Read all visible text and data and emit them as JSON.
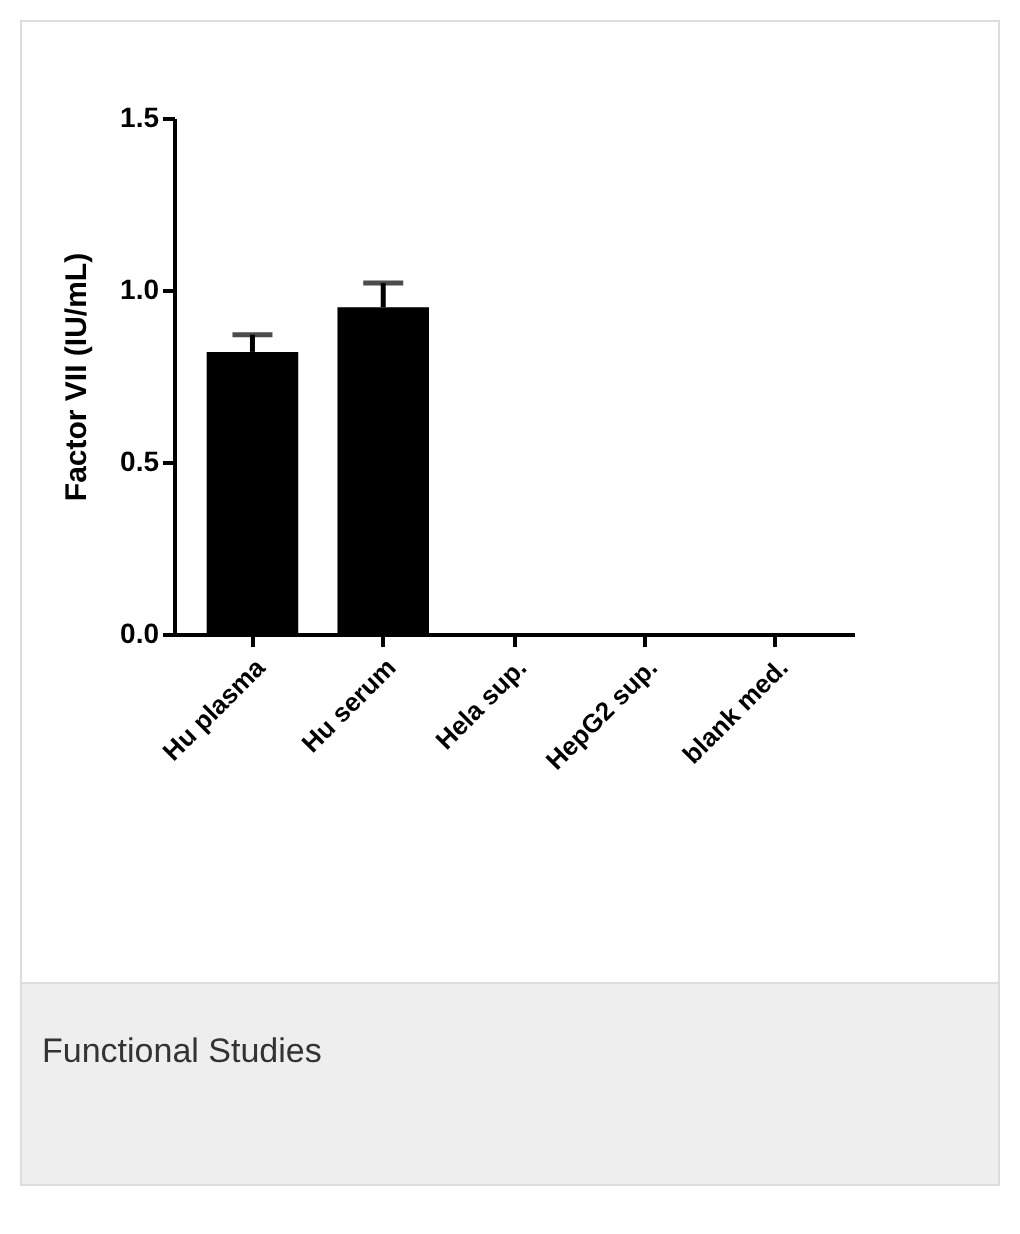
{
  "chart_data": {
    "type": "bar",
    "ylabel": "Factor VII (IU/mL)",
    "categories": [
      "Hu plasma",
      "Hu serum",
      "Hela sup.",
      "HepG2 sup.",
      "blank med."
    ],
    "values": [
      0.82,
      0.95,
      0,
      0,
      0
    ],
    "color": "#000000",
    "errors": [
      [
        0.82,
        0.87
      ],
      [
        0.95,
        1.02
      ],
      null,
      null,
      null
    ],
    "ylim": [
      0,
      1.5
    ],
    "yticks": [
      {
        "value": 0,
        "label": "0.0"
      },
      0.5,
      {
        "value": 1,
        "label": "1.0"
      },
      1.5
    ],
    "grid": false,
    "annotations": [
      "Functional Studies"
    ]
  }
}
